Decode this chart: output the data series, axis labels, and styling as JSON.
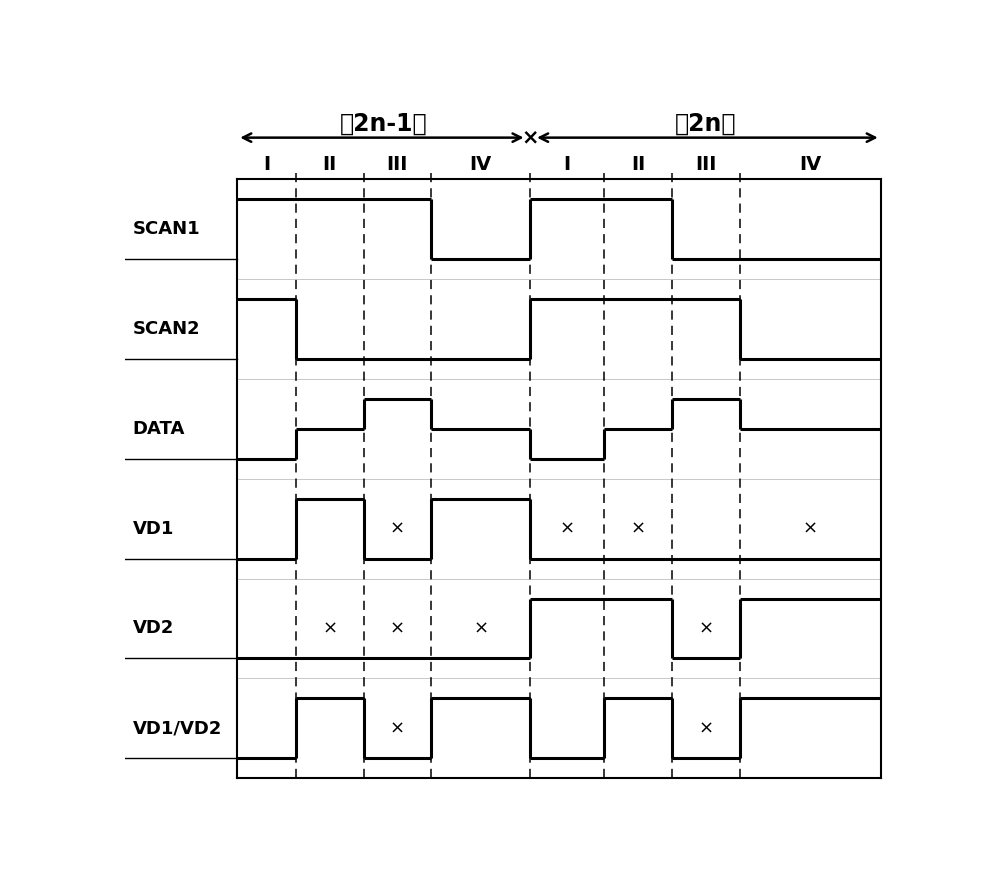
{
  "title1": "第2n-1帧",
  "title2": "第2n帧",
  "signals": [
    "SCAN1",
    "SCAN2",
    "DATA",
    "VD1",
    "VD2",
    "VD1/VD2"
  ],
  "bg_color": "#ffffff"
}
